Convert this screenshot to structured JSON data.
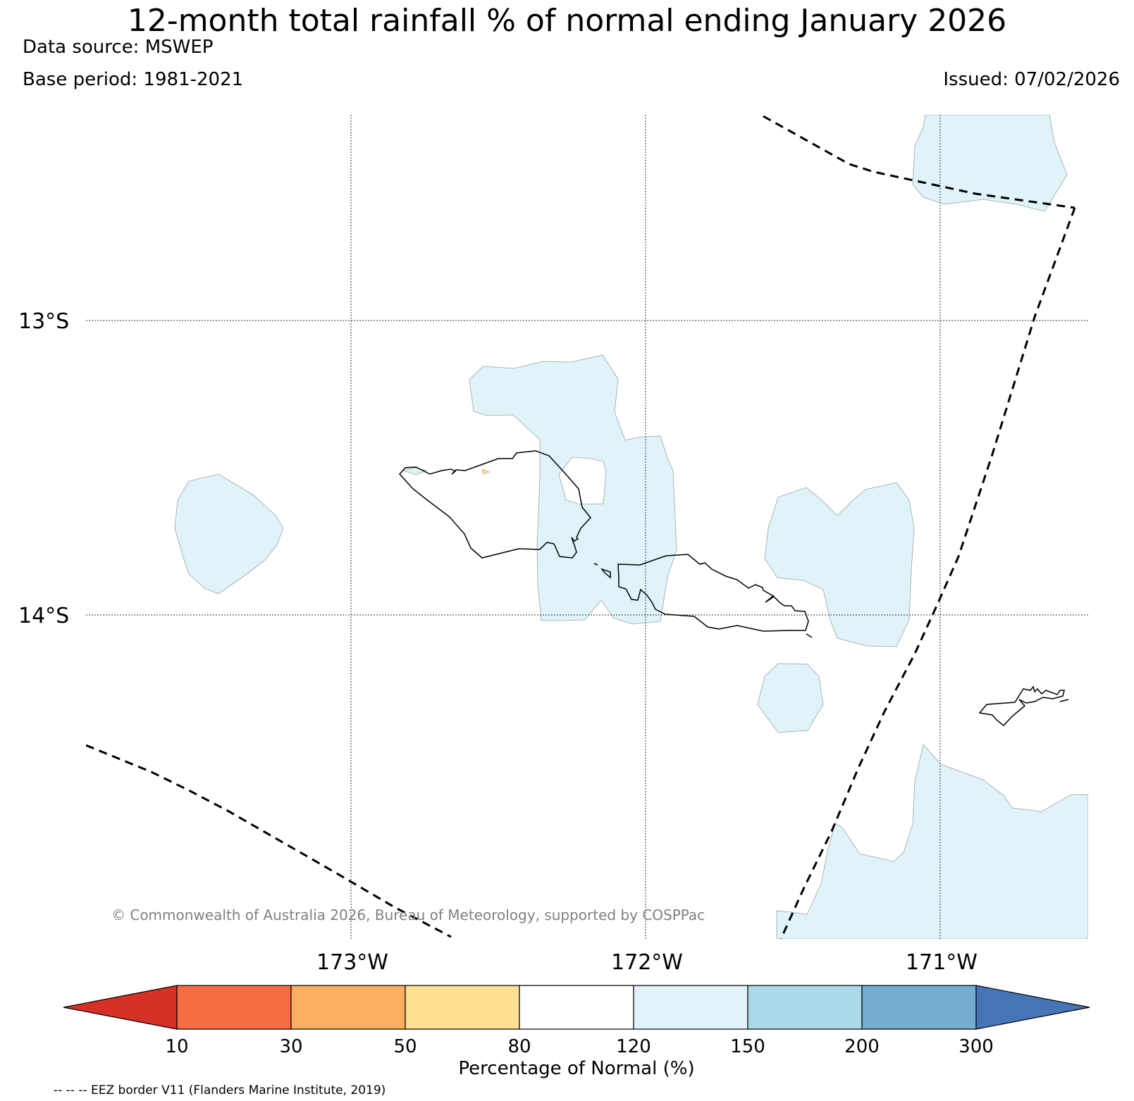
{
  "header": {
    "title": "12-month total rainfall % of normal ending January 2026",
    "data_source": "Data source: MSWEP",
    "base_period": "Base period: 1981-2021",
    "issued": "Issued: 07/02/2026"
  },
  "map": {
    "lat_labels": [
      "13°S",
      "14°S"
    ],
    "lon_labels": [
      "173°W",
      "172°W",
      "171°W"
    ],
    "copyright": "© Commonwealth of Australia 2026, Bureau of Meteorology, supported by COSPPac",
    "region_color": "#e0f3f8",
    "eez_style": "dashed"
  },
  "legend": {
    "title": "Percentage of Normal (%)",
    "ticks": [
      "10",
      "30",
      "50",
      "80",
      "120",
      "150",
      "200",
      "300"
    ],
    "colors": {
      "under": "#d73027",
      "bins": [
        "#f46d43",
        "#fdae61",
        "#fee090",
        "#ffffff",
        "#e0f3f8",
        "#abd9e9",
        "#74add1"
      ],
      "over": "#4575b4"
    }
  },
  "footnote": "-- -- -- EEZ border V11 (Flanders Marine Institute, 2019)"
}
